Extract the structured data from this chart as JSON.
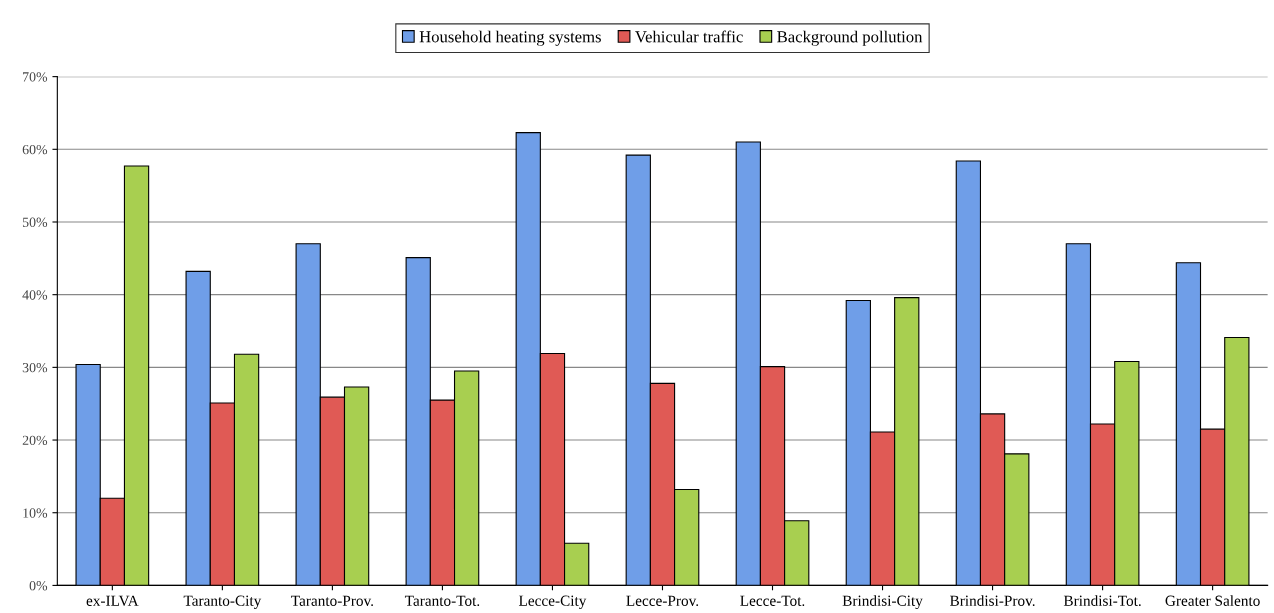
{
  "chart_data": {
    "type": "bar",
    "categories": [
      "ex-ILVA",
      "Taranto-City",
      "Taranto-Prov.",
      "Taranto-Tot.",
      "Lecce-City",
      "Lecce-Prov.",
      "Lecce-Tot.",
      "Brindisi-City",
      "Brindisi-Prov.",
      "Brindisi-Tot.",
      "Greater Salento"
    ],
    "series": [
      {
        "name": "Household heating systems",
        "color": "#6f9ee8",
        "values": [
          30.4,
          43.2,
          47.0,
          45.1,
          62.3,
          59.2,
          61.0,
          39.2,
          58.4,
          47.0,
          44.4
        ]
      },
      {
        "name": "Vehicular traffic",
        "color": "#e05a55",
        "values": [
          12.0,
          25.1,
          25.9,
          25.5,
          31.9,
          27.8,
          30.1,
          21.1,
          23.6,
          22.2,
          21.5
        ]
      },
      {
        "name": "Background pollution",
        "color": "#a8cf50",
        "values": [
          57.7,
          31.8,
          27.3,
          29.5,
          5.8,
          13.2,
          8.9,
          39.6,
          18.1,
          30.8,
          34.1
        ]
      }
    ],
    "ylim": [
      0,
      70
    ],
    "yticks": [
      {
        "value": 0,
        "label": "0%"
      },
      {
        "value": 10,
        "label": "10%"
      },
      {
        "value": 20,
        "label": "20%"
      },
      {
        "value": 30,
        "label": "30%"
      },
      {
        "value": 40,
        "label": "40%"
      },
      {
        "value": 50,
        "label": "50%"
      },
      {
        "value": 60,
        "label": "60%"
      },
      {
        "value": 70,
        "label": "70%"
      }
    ],
    "grid": "y",
    "legend": "top"
  }
}
